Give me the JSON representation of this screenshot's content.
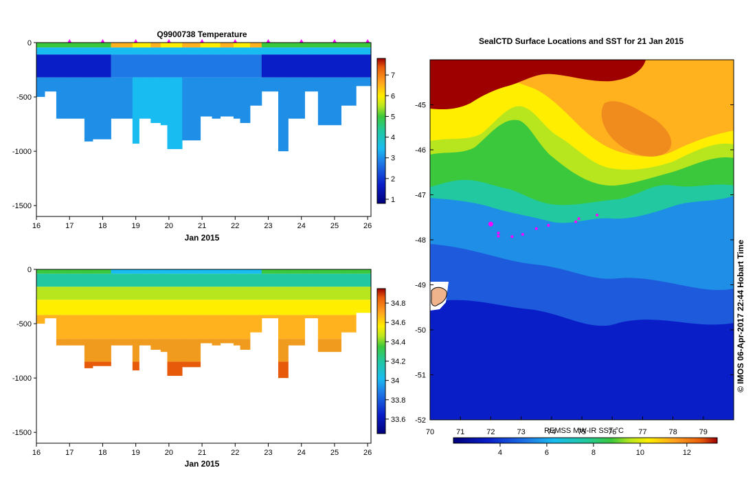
{
  "chart_data": [
    {
      "type": "heatmap",
      "title": "Q9900738  Temperature",
      "xlabel": "Jan 2015",
      "ylabel": "",
      "xlim": [
        16,
        26.1
      ],
      "ylim": [
        -1600,
        0
      ],
      "x_ticks": [
        16,
        17,
        18,
        19,
        20,
        21,
        22,
        23,
        24,
        25,
        26
      ],
      "y_ticks": [
        0,
        -500,
        -1000,
        -1500
      ],
      "y_tick_labels": [
        "0",
        "-500",
        "-1000",
        "-1500"
      ],
      "colorbar": {
        "min": 0.8,
        "max": 7.8,
        "ticks": [
          1,
          2,
          3,
          4,
          5,
          6,
          7
        ]
      },
      "profile_markers": [
        17,
        18,
        19,
        20,
        21,
        22,
        23,
        24,
        25,
        26
      ],
      "profiles": [
        {
          "x0": 16.0,
          "x1": 16.25,
          "depth": 500
        },
        {
          "x0": 16.25,
          "x1": 16.6,
          "depth": 450
        },
        {
          "x0": 16.6,
          "x1": 17.05,
          "depth": 700
        },
        {
          "x0": 17.05,
          "x1": 17.45,
          "depth": 700
        },
        {
          "x0": 17.45,
          "x1": 17.7,
          "depth": 910
        },
        {
          "x0": 17.7,
          "x1": 18.25,
          "depth": 890
        },
        {
          "x0": 18.25,
          "x1": 18.9,
          "depth": 700
        },
        {
          "x0": 18.9,
          "x1": 19.1,
          "depth": 930
        },
        {
          "x0": 19.1,
          "x1": 19.45,
          "depth": 700
        },
        {
          "x0": 19.45,
          "x1": 19.75,
          "depth": 740
        },
        {
          "x0": 19.75,
          "x1": 19.95,
          "depth": 760
        },
        {
          "x0": 19.95,
          "x1": 20.4,
          "depth": 980
        },
        {
          "x0": 20.4,
          "x1": 20.95,
          "depth": 900
        },
        {
          "x0": 20.95,
          "x1": 21.3,
          "depth": 680
        },
        {
          "x0": 21.3,
          "x1": 21.55,
          "depth": 700
        },
        {
          "x0": 21.55,
          "x1": 21.95,
          "depth": 680
        },
        {
          "x0": 21.95,
          "x1": 22.15,
          "depth": 700
        },
        {
          "x0": 22.15,
          "x1": 22.45,
          "depth": 740
        },
        {
          "x0": 22.45,
          "x1": 22.8,
          "depth": 580
        },
        {
          "x0": 22.8,
          "x1": 23.3,
          "depth": 450
        },
        {
          "x0": 23.3,
          "x1": 23.6,
          "depth": 1000
        },
        {
          "x0": 23.6,
          "x1": 24.1,
          "depth": 700
        },
        {
          "x0": 24.1,
          "x1": 24.5,
          "depth": 450
        },
        {
          "x0": 24.5,
          "x1": 25.2,
          "depth": 760
        },
        {
          "x0": 25.2,
          "x1": 25.65,
          "depth": 580
        },
        {
          "x0": 25.65,
          "x1": 26.1,
          "depth": 400
        }
      ]
    },
    {
      "type": "heatmap",
      "title": "",
      "xlabel": "Jan 2015",
      "ylabel": "",
      "xlim": [
        16,
        26.1
      ],
      "ylim": [
        -1600,
        0
      ],
      "x_ticks": [
        16,
        17,
        18,
        19,
        20,
        21,
        22,
        23,
        24,
        25,
        26
      ],
      "y_ticks": [
        0,
        -500,
        -1000,
        -1500
      ],
      "y_tick_labels": [
        "0",
        "-500",
        "-1000",
        "-1500"
      ],
      "colorbar": {
        "min": 33.45,
        "max": 34.95,
        "ticks": [
          33.6,
          33.8,
          34,
          34.2,
          34.4,
          34.6,
          34.8
        ]
      },
      "profiles": "same depths as temperature section"
    },
    {
      "type": "heatmap",
      "title": "SealCTD Surface Locations and SST for 21 Jan 2015",
      "xlabel": "",
      "ylabel": "",
      "xlim": [
        70,
        80
      ],
      "ylim": [
        -52,
        -44
      ],
      "x_ticks": [
        70,
        71,
        72,
        73,
        74,
        75,
        76,
        77,
        78,
        79
      ],
      "y_ticks": [
        -45,
        -46,
        -47,
        -48,
        -49,
        -50,
        -51,
        -52
      ],
      "colorbar": {
        "label": "REMSS MW-IR SST °C",
        "min": 2.0,
        "max": 13.3,
        "ticks": [
          4,
          6,
          8,
          10,
          12
        ]
      },
      "ctd_locations": [
        {
          "lon": 72.0,
          "lat": -47.65
        },
        {
          "lon": 72.25,
          "lat": -47.85
        },
        {
          "lon": 72.25,
          "lat": -47.92
        },
        {
          "lon": 72.7,
          "lat": -47.93
        },
        {
          "lon": 73.05,
          "lat": -47.88
        },
        {
          "lon": 73.5,
          "lat": -47.75
        },
        {
          "lon": 73.9,
          "lat": -47.68
        },
        {
          "lon": 74.8,
          "lat": -47.6
        },
        {
          "lon": 74.9,
          "lat": -47.53
        },
        {
          "lon": 75.5,
          "lat": -47.45
        }
      ]
    }
  ],
  "credit": "© IMOS 06-Apr-2017 22:44 Hobart Time"
}
